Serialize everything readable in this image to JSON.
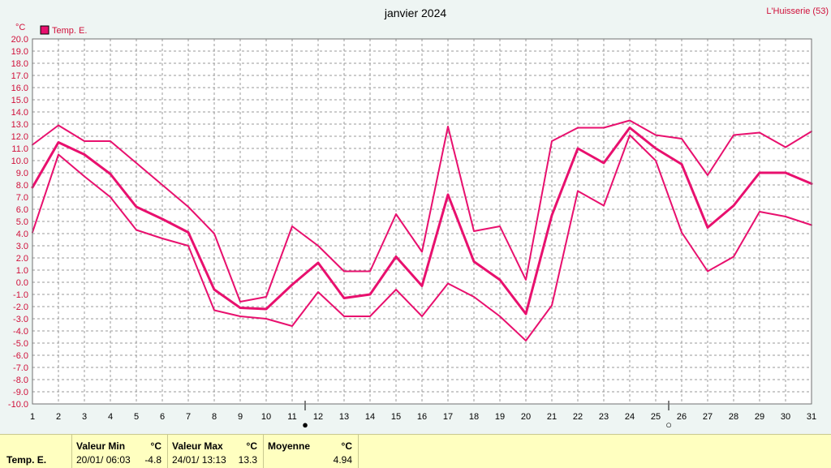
{
  "title": "janvier 2024",
  "station": "L'Huisserie (53)",
  "unit": "°C",
  "colors": {
    "series": "#e8106e",
    "grid": "#9a9a9a",
    "footer_bg": "#ffffc0"
  },
  "chart_data": {
    "type": "line",
    "title": "janvier 2024",
    "ylabel": "°C",
    "ylim": [
      -10,
      20
    ],
    "ytick_step": 1,
    "xlim": [
      1,
      31
    ],
    "x": [
      1,
      2,
      3,
      4,
      5,
      6,
      7,
      8,
      9,
      10,
      11,
      12,
      13,
      14,
      15,
      16,
      17,
      18,
      19,
      20,
      21,
      22,
      23,
      24,
      25,
      26,
      27,
      28,
      29,
      30,
      31
    ],
    "legend": [
      "Temp. E."
    ],
    "legend_position": "top-left",
    "grid": true,
    "series": [
      {
        "name": "Temp. E.",
        "role": "max",
        "values": [
          11.3,
          12.9,
          11.6,
          11.6,
          9.8,
          8.0,
          6.2,
          4.0,
          -1.6,
          -1.2,
          4.6,
          3.0,
          0.9,
          0.9,
          5.6,
          2.5,
          12.8,
          4.2,
          4.6,
          0.2,
          11.6,
          12.7,
          12.7,
          13.3,
          12.1,
          11.8,
          8.8,
          12.1,
          12.3,
          11.1,
          12.4
        ]
      },
      {
        "name": "Temp. E.",
        "role": "mean",
        "values": [
          7.8,
          11.5,
          10.5,
          8.9,
          6.2,
          5.2,
          4.1,
          -0.6,
          -2.1,
          -2.2,
          -0.2,
          1.6,
          -1.3,
          -1.0,
          2.1,
          -0.3,
          7.2,
          1.7,
          0.2,
          -2.6,
          5.5,
          11.0,
          9.8,
          12.7,
          11.0,
          9.7,
          4.5,
          6.3,
          9.0,
          9.0,
          8.1
        ]
      },
      {
        "name": "Temp. E.",
        "role": "min",
        "values": [
          4.1,
          10.5,
          8.7,
          7.0,
          4.3,
          3.6,
          3.0,
          -2.3,
          -2.8,
          -3.0,
          -3.6,
          -0.8,
          -2.8,
          -2.8,
          -0.6,
          -2.8,
          -0.1,
          -1.2,
          -2.8,
          -4.8,
          -1.9,
          7.5,
          6.3,
          12.1,
          10.0,
          4.1,
          0.9,
          2.1,
          5.8,
          5.4,
          4.7
        ]
      }
    ],
    "moon_markers": [
      {
        "symbol": "●",
        "x": 11.5
      },
      {
        "symbol": "○",
        "x": 25.5
      }
    ]
  },
  "footer": {
    "row_label": "Temp. E.",
    "min": {
      "header": "Valeur Min",
      "unit": "°C",
      "date": "20/01/  06:03",
      "value": "-4.8"
    },
    "max": {
      "header": "Valeur Max",
      "unit": "°C",
      "date": "24/01/  13:13",
      "value": "13.3"
    },
    "mean": {
      "header": "Moyenne",
      "unit": "°C",
      "value": "4.94"
    }
  }
}
